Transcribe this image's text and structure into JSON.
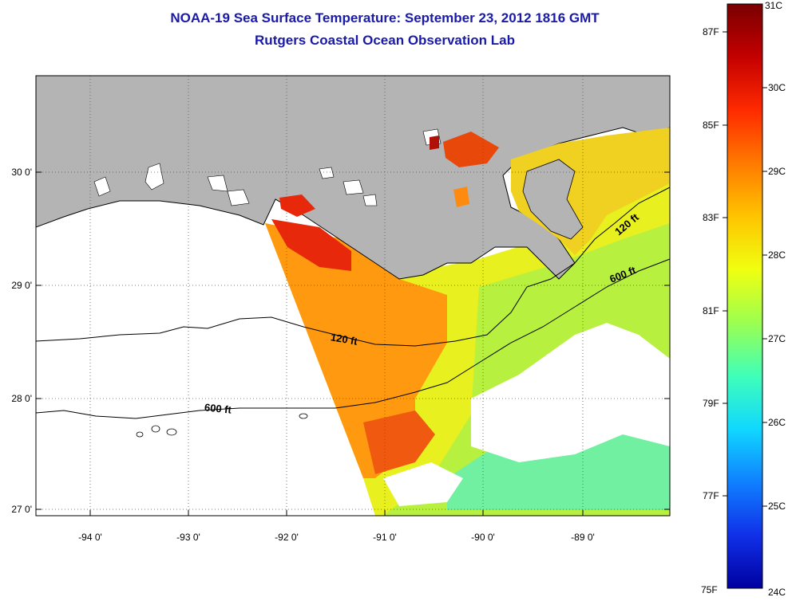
{
  "title": "NOAA-19 Sea Surface Temperature:  September 23, 2012 1816 GMT",
  "subtitle": "Rutgers Coastal Ocean Observation Lab",
  "map": {
    "lat_ticks": [
      "30 0'",
      "29 0'",
      "28 0'",
      "27 0'"
    ],
    "lon_ticks": [
      "-94 0'",
      "-93 0'",
      "-92 0'",
      "-91 0'",
      "-90 0'",
      "-89 0'"
    ],
    "contour_labels": {
      "shelf_120_west": "120 ft",
      "shelf_120_east": "120 ft",
      "slope_600_west": "600 ft",
      "slope_600_east": "600 ft"
    },
    "colors": {
      "land": "#b4b4b4",
      "no_data": "#ffffff",
      "coastline": "#000000"
    }
  },
  "colorbar": {
    "f_labels": [
      "87F",
      "85F",
      "83F",
      "81F",
      "79F",
      "77F",
      "75F"
    ],
    "c_labels": [
      "31C",
      "30C",
      "29C",
      "28C",
      "27C",
      "26C",
      "25C",
      "24C"
    ],
    "stops": [
      "#7a0000",
      "#c40000",
      "#ff2a00",
      "#ff7a00",
      "#ffc400",
      "#f0ff10",
      "#9cff50",
      "#40ffb8",
      "#10d8ff",
      "#1080ff",
      "#1030e8",
      "#0000a0"
    ]
  }
}
